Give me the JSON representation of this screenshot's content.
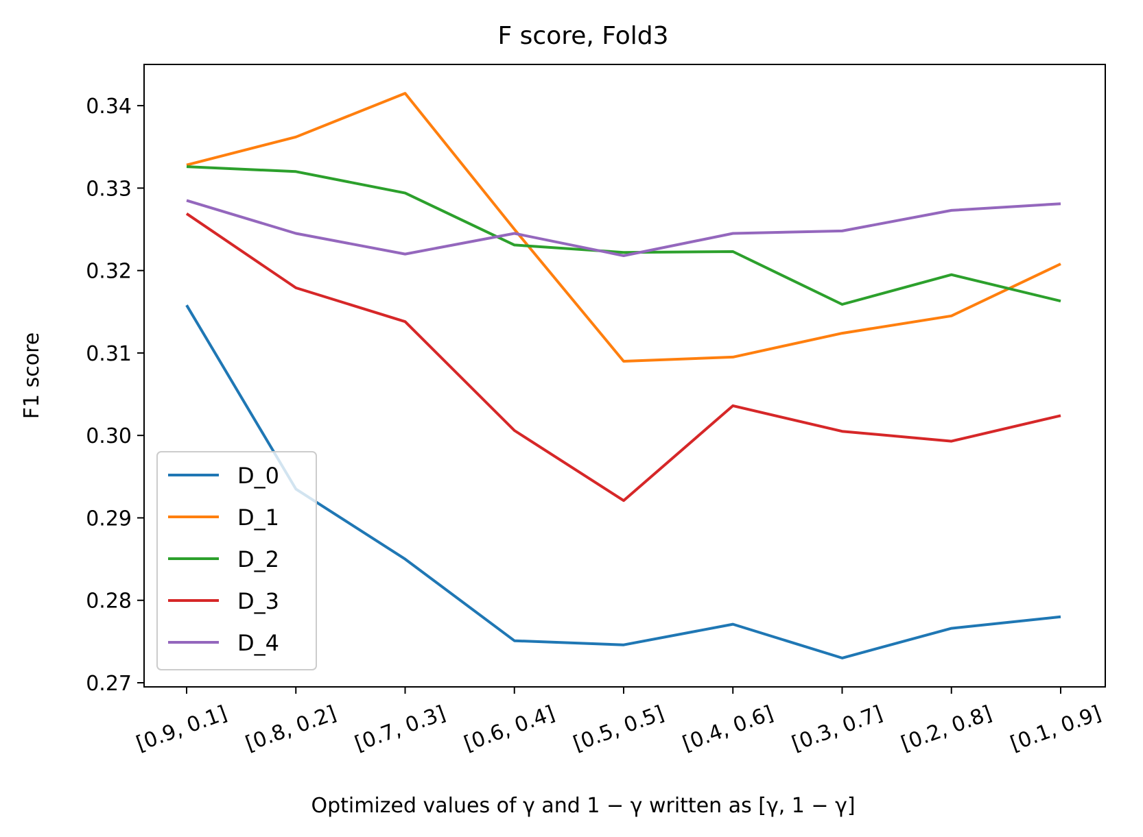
{
  "chart_data": {
    "type": "line",
    "title": "F score, Fold3",
    "xlabel": "Optimized values of γ and 1 − γ written as [γ, 1 − γ]",
    "ylabel": "F1 score",
    "categories": [
      "[0.9, 0.1]",
      "[0.8, 0.2]",
      "[0.7, 0.3]",
      "[0.6, 0.4]",
      "[0.5, 0.5]",
      "[0.4, 0.6]",
      "[0.3, 0.7]",
      "[0.2, 0.8]",
      "[0.1, 0.9]"
    ],
    "ylim": [
      0.2695,
      0.345
    ],
    "yticks": [
      0.27,
      0.28,
      0.29,
      0.3,
      0.31,
      0.32,
      0.33,
      0.34
    ],
    "ytick_labels": [
      "0.27",
      "0.28",
      "0.29",
      "0.30",
      "0.31",
      "0.32",
      "0.33",
      "0.34"
    ],
    "grid": false,
    "legend_position": "lower-left",
    "series": [
      {
        "name": "D_0",
        "color": "#1f77b4",
        "values": [
          0.3158,
          0.2935,
          0.285,
          0.2751,
          0.2746,
          0.2771,
          0.273,
          0.2766,
          0.278
        ]
      },
      {
        "name": "D_1",
        "color": "#ff7f0e",
        "values": [
          0.3328,
          0.3362,
          0.3415,
          0.325,
          0.309,
          0.3095,
          0.3124,
          0.3145,
          0.3208
        ]
      },
      {
        "name": "D_2",
        "color": "#2ca02c",
        "values": [
          0.3326,
          0.332,
          0.3294,
          0.3231,
          0.3222,
          0.3223,
          0.3159,
          0.3195,
          0.3163
        ]
      },
      {
        "name": "D_3",
        "color": "#d62728",
        "values": [
          0.3269,
          0.3179,
          0.3138,
          0.3006,
          0.2921,
          0.3036,
          0.3005,
          0.2993,
          0.3024
        ]
      },
      {
        "name": "D_4",
        "color": "#9467bd",
        "values": [
          0.3285,
          0.3245,
          0.322,
          0.3245,
          0.3218,
          0.3245,
          0.3248,
          0.3273,
          0.3281
        ]
      }
    ]
  }
}
